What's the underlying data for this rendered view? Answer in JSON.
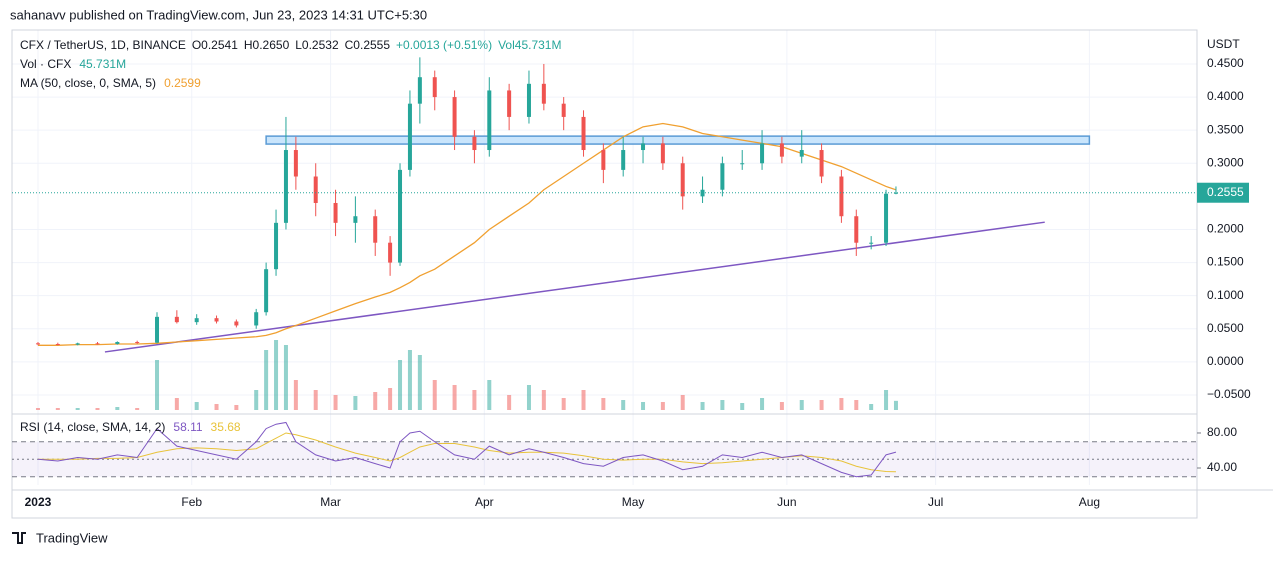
{
  "header": "sahanavv published on TradingView.com, Jun 23, 2023 14:31 UTC+5:30",
  "footer": "TradingView",
  "chart_data": {
    "type": "candlestick",
    "legend": [
      "CFX / TetherUS, 1D, BINANCE",
      "O0.2541",
      "H0.2650",
      "L0.2532",
      "C0.2555",
      "+0.0013 (+0.51%)",
      "Vol45.731M"
    ],
    "volume_label": "Vol · CFX",
    "volume_value": "45.731M",
    "ma_label": "MA (50, close, 0, SMA, 5)",
    "currency": "USDT",
    "last_price": 0.2555,
    "up_color": "#26a69a",
    "down_color": "#ef5350",
    "ma_color": "#f0a030",
    "x": [
      0,
      4,
      8,
      12,
      16,
      20,
      24,
      28,
      32,
      36,
      40,
      44,
      46,
      48,
      50,
      52,
      56,
      60,
      64,
      68,
      71,
      73,
      75,
      77,
      80,
      84,
      88,
      91,
      95,
      99,
      102,
      106,
      110,
      114,
      118,
      122,
      126,
      130,
      134,
      138,
      142,
      146,
      150,
      154,
      158,
      162,
      165,
      168,
      171,
      173
    ],
    "open": [
      0.028,
      0.027,
      0.026,
      0.028,
      0.027,
      0.03,
      0.029,
      0.068,
      0.06,
      0.066,
      0.061,
      0.055,
      0.075,
      0.14,
      0.21,
      0.32,
      0.28,
      0.24,
      0.21,
      0.22,
      0.18,
      0.15,
      0.29,
      0.39,
      0.43,
      0.4,
      0.34,
      0.32,
      0.41,
      0.37,
      0.42,
      0.39,
      0.37,
      0.32,
      0.29,
      0.32,
      0.33,
      0.3,
      0.25,
      0.26,
      0.3,
      0.3,
      0.33,
      0.31,
      0.32,
      0.28,
      0.22,
      0.18,
      0.18,
      0.2541
    ],
    "high": [
      0.03,
      0.029,
      0.029,
      0.03,
      0.031,
      0.032,
      0.075,
      0.078,
      0.072,
      0.07,
      0.064,
      0.08,
      0.15,
      0.23,
      0.37,
      0.34,
      0.3,
      0.26,
      0.25,
      0.23,
      0.19,
      0.3,
      0.41,
      0.46,
      0.44,
      0.41,
      0.35,
      0.43,
      0.42,
      0.44,
      0.45,
      0.4,
      0.38,
      0.33,
      0.34,
      0.34,
      0.34,
      0.31,
      0.28,
      0.31,
      0.32,
      0.35,
      0.34,
      0.35,
      0.33,
      0.29,
      0.23,
      0.19,
      0.26,
      0.265
    ],
    "low": [
      0.025,
      0.025,
      0.025,
      0.026,
      0.026,
      0.027,
      0.028,
      0.058,
      0.056,
      0.058,
      0.052,
      0.05,
      0.07,
      0.13,
      0.2,
      0.26,
      0.22,
      0.19,
      0.18,
      0.16,
      0.13,
      0.145,
      0.28,
      0.36,
      0.38,
      0.32,
      0.3,
      0.31,
      0.35,
      0.36,
      0.38,
      0.35,
      0.31,
      0.27,
      0.28,
      0.3,
      0.29,
      0.23,
      0.24,
      0.25,
      0.29,
      0.29,
      0.3,
      0.3,
      0.27,
      0.21,
      0.16,
      0.17,
      0.175,
      0.2532
    ],
    "close": [
      0.027,
      0.026,
      0.028,
      0.027,
      0.03,
      0.029,
      0.068,
      0.06,
      0.066,
      0.061,
      0.055,
      0.075,
      0.14,
      0.21,
      0.32,
      0.28,
      0.24,
      0.21,
      0.22,
      0.18,
      0.15,
      0.29,
      0.39,
      0.43,
      0.4,
      0.34,
      0.32,
      0.41,
      0.37,
      0.42,
      0.39,
      0.37,
      0.32,
      0.29,
      0.32,
      0.33,
      0.3,
      0.25,
      0.26,
      0.3,
      0.3,
      0.33,
      0.31,
      0.32,
      0.28,
      0.22,
      0.18,
      0.18,
      0.254,
      0.2555
    ],
    "volume": [
      10,
      10,
      10,
      10,
      15,
      10,
      250,
      60,
      40,
      30,
      25,
      100,
      300,
      350,
      325,
      150,
      100,
      75,
      70,
      90,
      110,
      250,
      300,
      275,
      150,
      125,
      100,
      150,
      75,
      125,
      100,
      60,
      100,
      60,
      50,
      40,
      40,
      75,
      40,
      50,
      35,
      60,
      40,
      50,
      50,
      60,
      50,
      30,
      100,
      45.731
    ],
    "ma": [
      0.025,
      0.025,
      0.026,
      0.026,
      0.027,
      0.027,
      0.028,
      0.03,
      0.032,
      0.034,
      0.036,
      0.038,
      0.04,
      0.044,
      0.05,
      0.055,
      0.066,
      0.077,
      0.088,
      0.098,
      0.105,
      0.112,
      0.12,
      0.13,
      0.14,
      0.16,
      0.18,
      0.2,
      0.22,
      0.24,
      0.26,
      0.28,
      0.3,
      0.32,
      0.34,
      0.355,
      0.36,
      0.355,
      0.345,
      0.34,
      0.335,
      0.33,
      0.325,
      0.315,
      0.305,
      0.295,
      0.285,
      0.275,
      0.265,
      0.2599
    ],
    "trendline": {
      "x": [
        13.5,
        203
      ],
      "y": [
        0.015,
        0.211
      ],
      "color": "#7e57c2"
    },
    "zone": {
      "x": [
        46,
        212
      ],
      "y": [
        0.329,
        0.341
      ],
      "color": "#5b9bd5"
    },
    "xlim": [
      -5.24,
      233.7
    ],
    "xticks": [
      {
        "value": 0,
        "label": "2023"
      },
      {
        "value": 31,
        "label": "Feb"
      },
      {
        "value": 59,
        "label": "Mar"
      },
      {
        "value": 90,
        "label": "Apr"
      },
      {
        "value": 120,
        "label": "May"
      },
      {
        "value": 151,
        "label": "Jun"
      },
      {
        "value": 181,
        "label": "Jul"
      },
      {
        "value": 212,
        "label": "Aug"
      }
    ],
    "ylim": [
      -0.0727,
      0.5013
    ],
    "yticks": [
      {
        "value": 0.45,
        "label": "0.4500"
      },
      {
        "value": 0.4,
        "label": "0.4000"
      },
      {
        "value": 0.35,
        "label": "0.3500"
      },
      {
        "value": 0.3,
        "label": "0.3000"
      },
      {
        "value": 0.2,
        "label": "0.2000"
      },
      {
        "value": 0.15,
        "label": "0.1500"
      },
      {
        "value": 0.1,
        "label": "0.1000"
      },
      {
        "value": 0.05,
        "label": "0.0500"
      },
      {
        "value": 0,
        "label": "0.0000"
      },
      {
        "value": -0.05,
        "label": "−0.0500"
      }
    ],
    "grid": true,
    "rsi": {
      "label": "RSI (14, close, SMA, 14, 2)",
      "color": "#7e57c2",
      "ma_color": "#e8c33a",
      "values": [
        50,
        48,
        52,
        50,
        55,
        52,
        85,
        65,
        60,
        55,
        50,
        70,
        85,
        90,
        92,
        70,
        55,
        48,
        52,
        45,
        40,
        70,
        80,
        82,
        70,
        55,
        50,
        65,
        55,
        62,
        58,
        52,
        45,
        42,
        52,
        55,
        48,
        38,
        42,
        55,
        52,
        58,
        52,
        55,
        45,
        35,
        30,
        32,
        55,
        58.11
      ],
      "ma": [
        50,
        50,
        50,
        51,
        51,
        52,
        58,
        62,
        63,
        62,
        60,
        62,
        68,
        74,
        80,
        78,
        72,
        64,
        57,
        52,
        48,
        52,
        58,
        64,
        68,
        68,
        64,
        60,
        57,
        58,
        58,
        57,
        54,
        50,
        49,
        50,
        50,
        47,
        45,
        46,
        48,
        50,
        52,
        54,
        52,
        48,
        42,
        38,
        36,
        35.68
      ],
      "ylim": [
        20.6,
        97.1
      ],
      "yticks": [
        {
          "value": 80,
          "label": "80.00"
        },
        {
          "value": 40,
          "label": "40.00"
        }
      ],
      "bands": [
        30,
        50,
        70
      ]
    }
  }
}
